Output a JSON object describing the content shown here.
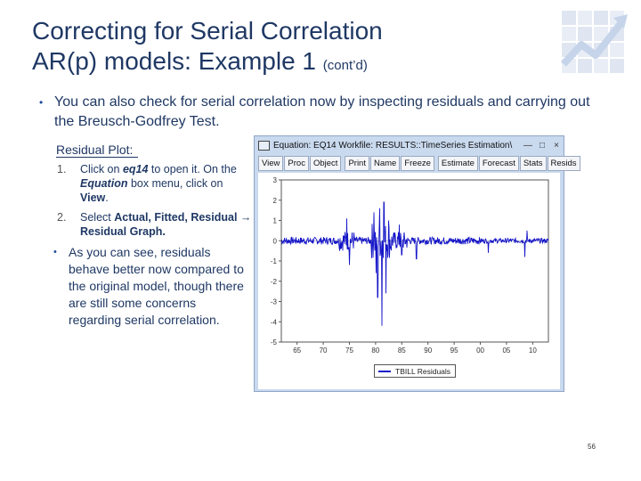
{
  "slide": {
    "title_line1": "Correcting for Serial Correlation",
    "title_line2": "AR(p) models: Example 1",
    "title_cont": "(cont’d)",
    "bullet": "You can also check for serial correlation now by inspecting residuals and carrying out the Breusch-Godfrey Test.",
    "sub_heading": "Residual Plot:",
    "steps": [
      {
        "num": "1.",
        "pre": "Click on ",
        "em1": "eq14",
        "mid1": " to open it. On the ",
        "em2": "Equation",
        "mid2": " box menu, click on ",
        "b1": "View",
        "post": "."
      },
      {
        "num": "2.",
        "pre": "Select ",
        "b1": "Actual, Fitted, Residual → Residual Graph."
      }
    ],
    "note": "As you can see, residuals behave better now compared to the original model, though there are still some concerns regarding serial correlation.",
    "page_number": "56"
  },
  "window": {
    "title": "Equation: EQ14   Workfile: RESULTS::TimeSeries Estimation\\",
    "controls": [
      "—",
      "□",
      "×"
    ],
    "toolbar": [
      "View",
      "Proc",
      "Object",
      "Print",
      "Name",
      "Freeze",
      "Estimate",
      "Forecast",
      "Stats",
      "Resids"
    ],
    "legend": "TBILL Residuals"
  },
  "colors": {
    "title": "#1f3864",
    "series": "#1414c8",
    "window": "#c9d9ee"
  },
  "chart_data": {
    "type": "line",
    "ylim": [
      -5,
      3
    ],
    "yticks": [
      "3",
      "2",
      "1",
      "0",
      "-1",
      "-2",
      "-3",
      "-4",
      "-5"
    ],
    "xticks": [
      "65",
      "70",
      "75",
      "80",
      "85",
      "90",
      "95",
      "00",
      "05",
      "10"
    ],
    "series": [
      {
        "name": "TBILL Residuals",
        "x_start": 1962,
        "x_end": 2013,
        "spikes": [
          {
            "x": 1974.5,
            "v": 1.1
          },
          {
            "x": 1975.0,
            "v": -1.2
          },
          {
            "x": 1979.7,
            "v": 1.4
          },
          {
            "x": 1980.1,
            "v": -1.6
          },
          {
            "x": 1980.4,
            "v": -2.8
          },
          {
            "x": 1980.8,
            "v": 1.6
          },
          {
            "x": 1981.2,
            "v": -4.2
          },
          {
            "x": 1981.6,
            "v": 1.9
          },
          {
            "x": 1982.0,
            "v": -2.6
          },
          {
            "x": 1982.5,
            "v": 1.0
          },
          {
            "x": 1984.5,
            "v": 0.8
          },
          {
            "x": 1985.0,
            "v": -0.7
          },
          {
            "x": 1987.8,
            "v": -0.9
          },
          {
            "x": 2001.5,
            "v": -0.6
          },
          {
            "x": 2008.5,
            "v": -0.8
          },
          {
            "x": 2008.9,
            "v": 0.5
          }
        ]
      }
    ]
  }
}
